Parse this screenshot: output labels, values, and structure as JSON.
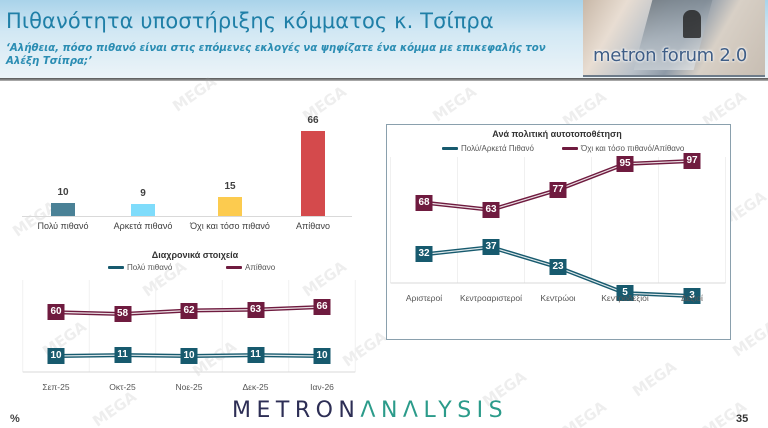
{
  "header": {
    "title": "Πιθανότητα υποστήριξης κόμματος κ. Τσίπρα",
    "subtitle": "‘Αλήθεια, πόσο πιθανό είναι στις επόμενες εκλογές να ψηφίζατε ένα κόμμα με επικεφαλής τον Αλέξη Τσίπρα;’",
    "forum_label": "metron forum 2.0"
  },
  "watermark": "MEGA",
  "colors": {
    "title": "#1f7fa7",
    "teal_dark": "#175a6e",
    "maroon": "#6f1b3f",
    "bar_very": "#4a8196",
    "bar_fairly": "#7fdcfb",
    "bar_not_so": "#fccb4f",
    "bar_unlikely": "#d44a4c"
  },
  "chart_data": [
    {
      "type": "bar",
      "title": "",
      "categories": [
        "Πολύ πιθανό",
        "Αρκετά πιθανό",
        "Όχι και τόσο πιθανό",
        "Απίθανο"
      ],
      "values": [
        10,
        9,
        15,
        66
      ],
      "labels": [
        "10",
        "9",
        "15",
        "66"
      ],
      "colors": [
        "#4a8196",
        "#7fdcfb",
        "#fccb4f",
        "#d44a4c"
      ],
      "xlabel": "",
      "ylabel": "",
      "ylim": [
        0,
        70
      ],
      "grid": false
    },
    {
      "type": "line",
      "title": "Διαχρονικά στοιχεία",
      "categories": [
        "Σεπ-25",
        "Οκτ-25",
        "Νοε-25",
        "Δεκ-25",
        "Ιαν-26"
      ],
      "series": [
        {
          "name": "Πολύ πιθανό",
          "values": [
            10,
            11,
            10,
            11,
            10
          ],
          "labels": [
            "10",
            "11",
            "10",
            "11",
            "10"
          ],
          "color": "#175a6e"
        },
        {
          "name": "Απίθανο",
          "values": [
            60,
            58,
            62,
            63,
            66
          ],
          "labels": [
            "60",
            "58",
            "62",
            "63",
            "66"
          ],
          "color": "#6f1b3f"
        }
      ],
      "legend_position": "top",
      "grid": true
    },
    {
      "type": "line",
      "title": "Ανά πολιτική αυτοτοποθέτηση",
      "categories": [
        "Αριστεροί",
        "Κεντροαριστεροί",
        "Κεντρώοι",
        "Κεντροδεξιοί",
        "Δεξιοί"
      ],
      "series": [
        {
          "name": "Πολύ/Αρκετά Πιθανό",
          "values": [
            32,
            37,
            23,
            5,
            3
          ],
          "labels": [
            "32",
            "37",
            "23",
            "5",
            "3"
          ],
          "color": "#175a6e"
        },
        {
          "name": "Όχι και τόσο πιθανό/Απίθανο",
          "values": [
            68,
            63,
            77,
            95,
            97
          ],
          "labels": [
            "68",
            "63",
            "77",
            "95",
            "97"
          ],
          "color": "#6f1b3f"
        }
      ],
      "legend_position": "top",
      "grid": true
    }
  ],
  "footer": {
    "unit": "%",
    "brand_part1": "METRON",
    "brand_part2": "ΛNΛLYSIS",
    "page_number": "35"
  }
}
